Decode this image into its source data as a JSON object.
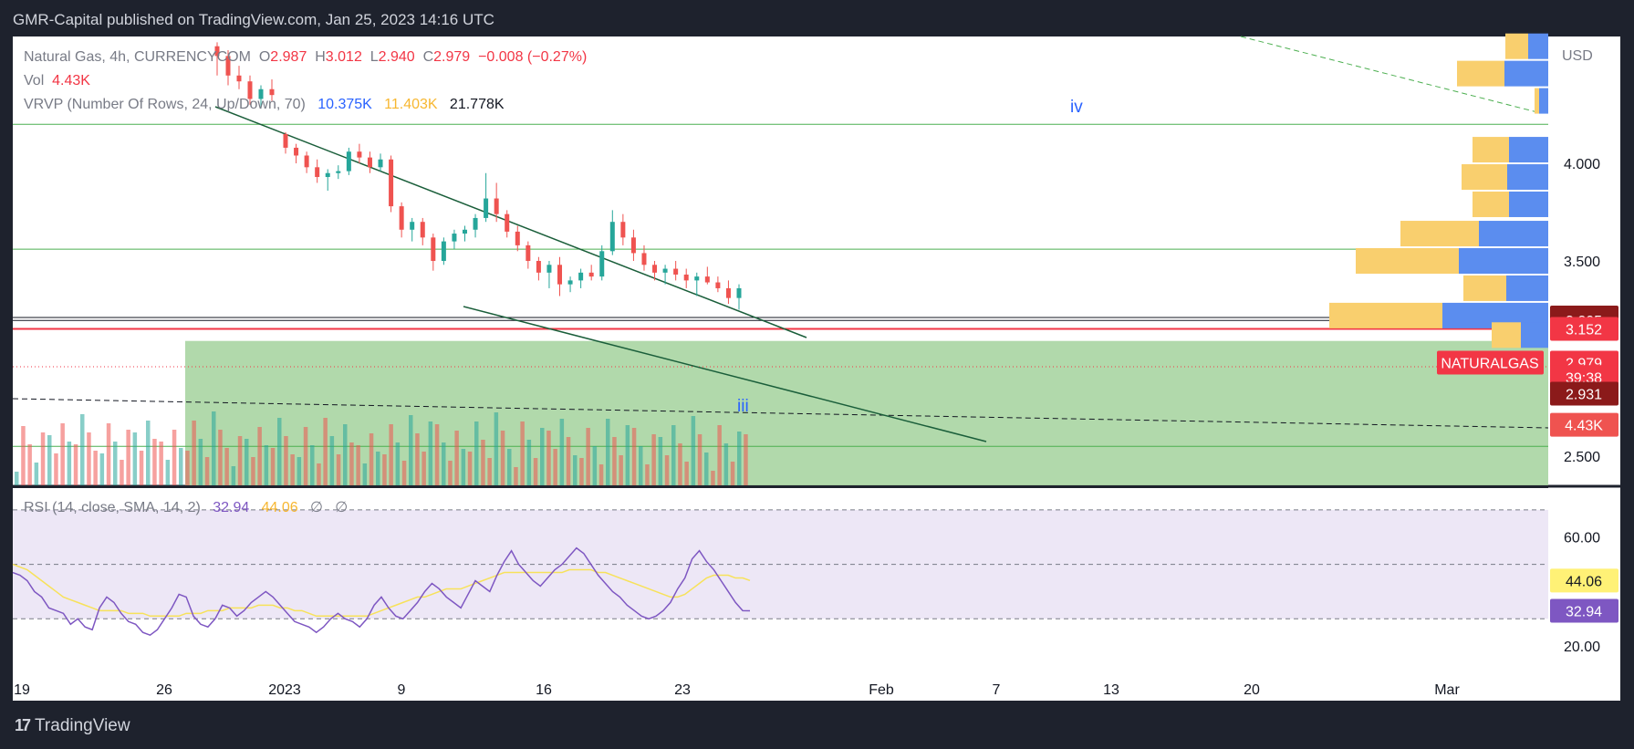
{
  "header": {
    "publisher": "GMR-Capital published on TradingView.com, Jan 25, 2023 14:16 UTC"
  },
  "footer": {
    "brand": "TradingView"
  },
  "legend": {
    "symbol": "Natural Gas, 4h, CURRENCYCOM",
    "o_label": "O",
    "o": "2.987",
    "h_label": "H",
    "h": "3.012",
    "l_label": "L",
    "l": "2.940",
    "c_label": "C",
    "c": "2.979",
    "change": "−0.008 (−0.27%)",
    "vol_label": "Vol",
    "vol": "4.43K",
    "vrvp_label": "VRVP (Number Of Rows, 24, Up/Down, 70)",
    "vrvp_up": "10.375K",
    "vrvp_down": "11.403K",
    "vrvp_total": "21.778K",
    "rsi_label": "RSI (14, close, SMA, 14, 2)",
    "rsi_value": "32.94",
    "rsi_sma": "44.06",
    "rsi_extra1": "∅",
    "rsi_extra2": "∅"
  },
  "colors": {
    "background": "#ffffff",
    "up": "#26a69a",
    "down": "#ef5350",
    "vp_up": "#5b8def",
    "vp_down": "#f9cf6e",
    "zone": "#a8d5a2",
    "rsi_line": "#7e57c2",
    "rsi_sma": "#f7e25a",
    "rsi_band": "#ede7f6",
    "hline_green": "#4caf50",
    "hline_red": "#f23645"
  },
  "annotations": {
    "wave_iv": "iv",
    "wave_iii": "iii"
  },
  "price_badges": [
    {
      "label": "3.210",
      "bg": "#8b1a1a",
      "value": 3.21
    },
    {
      "label": "3.205",
      "bg": "#8b1a1a",
      "value": 3.195
    },
    {
      "label": "3.152",
      "bg": "#f23645",
      "value": 3.152
    },
    {
      "label": "NATURALGAS",
      "bg": "#f23645",
      "value": 2.979
    },
    {
      "label": "2.979",
      "bg": "#f23645",
      "value": 2.979
    },
    {
      "label": "39:38",
      "bg": "#f23645",
      "value": 2.905
    },
    {
      "label": "2.931",
      "bg": "#8b1a1a",
      "value": 2.82
    },
    {
      "label": "4.43K",
      "bg": "#ef5350",
      "value": 2.66
    }
  ],
  "rsi_badges": [
    {
      "label": "44.06",
      "bg": "#fff176",
      "fg": "#131722",
      "value": 44.06
    },
    {
      "label": "32.94",
      "bg": "#7e57c2",
      "fg": "#ffffff",
      "value": 32.94
    }
  ],
  "chart_data": {
    "type": "candlestick",
    "price_axis": {
      "ticks": [
        "4.000",
        "3.500",
        "2.500"
      ],
      "tick_values": [
        4.0,
        3.5,
        2.5
      ],
      "unit": "USD",
      "range": [
        2.35,
        4.65
      ]
    },
    "rsi_axis": {
      "ticks": [
        "60.00",
        "20.00"
      ],
      "tick_values": [
        60,
        20
      ],
      "range": [
        10,
        78
      ],
      "bands": [
        70,
        50,
        30
      ]
    },
    "time_axis": {
      "ticks": [
        "19",
        "26",
        "2023",
        "9",
        "16",
        "23",
        "Feb",
        "7",
        "13",
        "20",
        "Mar"
      ]
    },
    "horizontal_levels": [
      {
        "price": 4.2,
        "color": "green"
      },
      {
        "price": 3.56,
        "color": "green"
      },
      {
        "price": 3.21,
        "color": "dark"
      },
      {
        "price": 3.195,
        "color": "dark"
      },
      {
        "price": 3.152,
        "color": "red"
      },
      {
        "price": 2.55,
        "color": "green"
      }
    ],
    "candles": [
      {
        "t": "12/28 00:00",
        "o": 4.6,
        "h": 4.62,
        "l": 4.45,
        "c": 4.55
      },
      {
        "t": "12/28 04:00",
        "o": 4.55,
        "h": 4.58,
        "l": 4.4,
        "c": 4.45
      },
      {
        "t": "12/28 08:00",
        "o": 4.45,
        "h": 4.5,
        "l": 4.38,
        "c": 4.42
      },
      {
        "t": "12/28 12:00",
        "o": 4.42,
        "h": 4.45,
        "l": 4.3,
        "c": 4.33
      },
      {
        "t": "12/28 16:00",
        "o": 4.33,
        "h": 4.4,
        "l": 4.28,
        "c": 4.38
      },
      {
        "t": "12/28 20:00",
        "o": 4.38,
        "h": 4.43,
        "l": 4.32,
        "c": 4.35
      },
      {
        "t": "01/02 00:00",
        "o": 4.15,
        "h": 4.16,
        "l": 4.05,
        "c": 4.08
      },
      {
        "t": "01/02 04:00",
        "o": 4.08,
        "h": 4.1,
        "l": 4.0,
        "c": 4.04
      },
      {
        "t": "01/02 08:00",
        "o": 4.04,
        "h": 4.06,
        "l": 3.95,
        "c": 3.98
      },
      {
        "t": "01/02 12:00",
        "o": 3.98,
        "h": 4.02,
        "l": 3.9,
        "c": 3.93
      },
      {
        "t": "01/02 16:00",
        "o": 3.93,
        "h": 3.97,
        "l": 3.86,
        "c": 3.95
      },
      {
        "t": "01/02 20:00",
        "o": 3.95,
        "h": 3.99,
        "l": 3.92,
        "c": 3.96
      },
      {
        "t": "01/03 00:00",
        "o": 3.96,
        "h": 4.08,
        "l": 3.94,
        "c": 4.06
      },
      {
        "t": "01/03 04:00",
        "o": 4.06,
        "h": 4.1,
        "l": 4.0,
        "c": 4.03
      },
      {
        "t": "01/03 08:00",
        "o": 4.03,
        "h": 4.06,
        "l": 3.95,
        "c": 3.98
      },
      {
        "t": "01/03 12:00",
        "o": 3.98,
        "h": 4.05,
        "l": 3.96,
        "c": 4.02
      },
      {
        "t": "01/03 16:00",
        "o": 4.02,
        "h": 4.04,
        "l": 3.75,
        "c": 3.78
      },
      {
        "t": "01/03 20:00",
        "o": 3.78,
        "h": 3.8,
        "l": 3.62,
        "c": 3.66
      },
      {
        "t": "01/04 00:00",
        "o": 3.66,
        "h": 3.72,
        "l": 3.6,
        "c": 3.7
      },
      {
        "t": "01/04 04:00",
        "o": 3.7,
        "h": 3.72,
        "l": 3.58,
        "c": 3.62
      },
      {
        "t": "01/04 08:00",
        "o": 3.62,
        "h": 3.64,
        "l": 3.45,
        "c": 3.5
      },
      {
        "t": "01/04 12:00",
        "o": 3.5,
        "h": 3.62,
        "l": 3.48,
        "c": 3.6
      },
      {
        "t": "01/04 16:00",
        "o": 3.6,
        "h": 3.66,
        "l": 3.56,
        "c": 3.64
      },
      {
        "t": "01/04 20:00",
        "o": 3.64,
        "h": 3.68,
        "l": 3.6,
        "c": 3.66
      },
      {
        "t": "01/05 00:00",
        "o": 3.66,
        "h": 3.74,
        "l": 3.62,
        "c": 3.72
      },
      {
        "t": "01/05 04:00",
        "o": 3.72,
        "h": 3.95,
        "l": 3.7,
        "c": 3.82
      },
      {
        "t": "01/05 08:00",
        "o": 3.82,
        "h": 3.9,
        "l": 3.7,
        "c": 3.74
      },
      {
        "t": "01/05 12:00",
        "o": 3.74,
        "h": 3.76,
        "l": 3.62,
        "c": 3.65
      },
      {
        "t": "01/05 16:00",
        "o": 3.65,
        "h": 3.68,
        "l": 3.55,
        "c": 3.58
      },
      {
        "t": "01/05 20:00",
        "o": 3.58,
        "h": 3.6,
        "l": 3.46,
        "c": 3.5
      },
      {
        "t": "01/06 00:00",
        "o": 3.5,
        "h": 3.52,
        "l": 3.4,
        "c": 3.44
      },
      {
        "t": "01/06 04:00",
        "o": 3.44,
        "h": 3.5,
        "l": 3.36,
        "c": 3.48
      },
      {
        "t": "01/06 08:00",
        "o": 3.48,
        "h": 3.52,
        "l": 3.32,
        "c": 3.38
      },
      {
        "t": "01/06 12:00",
        "o": 3.38,
        "h": 3.42,
        "l": 3.34,
        "c": 3.4
      },
      {
        "t": "01/06 16:00",
        "o": 3.4,
        "h": 3.46,
        "l": 3.36,
        "c": 3.44
      },
      {
        "t": "01/06 20:00",
        "o": 3.44,
        "h": 3.48,
        "l": 3.4,
        "c": 3.42
      },
      {
        "t": "01/09 00:00",
        "o": 3.42,
        "h": 3.58,
        "l": 3.4,
        "c": 3.55
      },
      {
        "t": "01/09 04:00",
        "o": 3.55,
        "h": 3.76,
        "l": 3.53,
        "c": 3.7
      },
      {
        "t": "01/09 08:00",
        "o": 3.7,
        "h": 3.74,
        "l": 3.58,
        "c": 3.62
      },
      {
        "t": "01/09 12:00",
        "o": 3.62,
        "h": 3.66,
        "l": 3.5,
        "c": 3.54
      },
      {
        "t": "01/09 16:00",
        "o": 3.54,
        "h": 3.58,
        "l": 3.45,
        "c": 3.48
      },
      {
        "t": "01/09 20:00",
        "o": 3.48,
        "h": 3.5,
        "l": 3.4,
        "c": 3.44
      },
      {
        "t": "01/10 00:00",
        "o": 3.44,
        "h": 3.48,
        "l": 3.38,
        "c": 3.46
      },
      {
        "t": "01/10 04:00",
        "o": 3.46,
        "h": 3.5,
        "l": 3.4,
        "c": 3.43
      },
      {
        "t": "01/10 08:00",
        "o": 3.43,
        "h": 3.46,
        "l": 3.36,
        "c": 3.4
      },
      {
        "t": "01/10 12:00",
        "o": 3.4,
        "h": 3.44,
        "l": 3.32,
        "c": 3.42
      },
      {
        "t": "01/10 16:00",
        "o": 3.42,
        "h": 3.47,
        "l": 3.38,
        "c": 3.39
      },
      {
        "t": "01/10 20:00",
        "o": 3.39,
        "h": 3.42,
        "l": 3.34,
        "c": 3.36
      },
      {
        "t": "01/11 00:00",
        "o": 3.36,
        "h": 3.4,
        "l": 3.28,
        "c": 3.31
      },
      {
        "t": "01/11 04:00",
        "o": 3.31,
        "h": 3.38,
        "l": 3.25,
        "c": 3.36
      }
    ],
    "rsi": [
      47,
      46,
      44,
      40,
      38,
      34,
      33,
      32,
      28,
      30,
      27,
      26,
      34,
      38,
      36,
      32,
      29,
      28,
      25,
      24,
      26,
      30,
      34,
      39,
      38,
      31,
      28,
      27,
      30,
      35,
      34,
      31,
      33,
      36,
      38,
      40,
      38,
      35,
      32,
      29,
      28,
      27,
      25,
      27,
      30,
      32,
      30,
      29,
      27,
      30,
      35,
      38,
      34,
      31,
      30,
      33,
      36,
      40,
      43,
      41,
      38,
      36,
      34,
      39,
      44,
      42,
      40,
      46,
      51,
      55,
      50,
      47,
      44,
      42,
      45,
      48,
      50,
      53,
      56,
      54,
      50,
      46,
      43,
      40,
      38,
      35,
      33,
      31,
      30,
      31,
      33,
      36,
      41,
      45,
      52,
      55,
      51,
      48,
      44,
      40,
      36,
      33,
      32.94
    ],
    "rsi_sma": [
      50,
      49,
      48,
      46,
      44,
      42,
      40,
      38,
      37,
      36,
      35,
      34,
      33,
      33,
      33,
      33,
      32,
      32,
      32,
      31,
      31,
      31,
      31,
      31,
      32,
      32,
      32,
      33,
      33,
      33,
      34,
      34,
      34,
      34,
      35,
      35,
      35,
      34,
      34,
      33,
      33,
      32,
      31,
      31,
      31,
      31,
      31,
      31,
      31,
      31,
      32,
      33,
      34,
      35,
      36,
      37,
      38,
      38,
      39,
      40,
      41,
      41,
      41,
      42,
      43,
      44,
      45,
      46,
      47,
      47,
      47,
      47,
      47,
      47,
      47,
      47,
      47,
      48,
      48,
      48,
      48,
      47,
      47,
      46,
      45,
      44,
      43,
      42,
      41,
      40,
      39,
      38,
      38,
      39,
      41,
      43,
      45,
      46,
      46,
      46,
      45,
      45,
      44.06
    ]
  }
}
